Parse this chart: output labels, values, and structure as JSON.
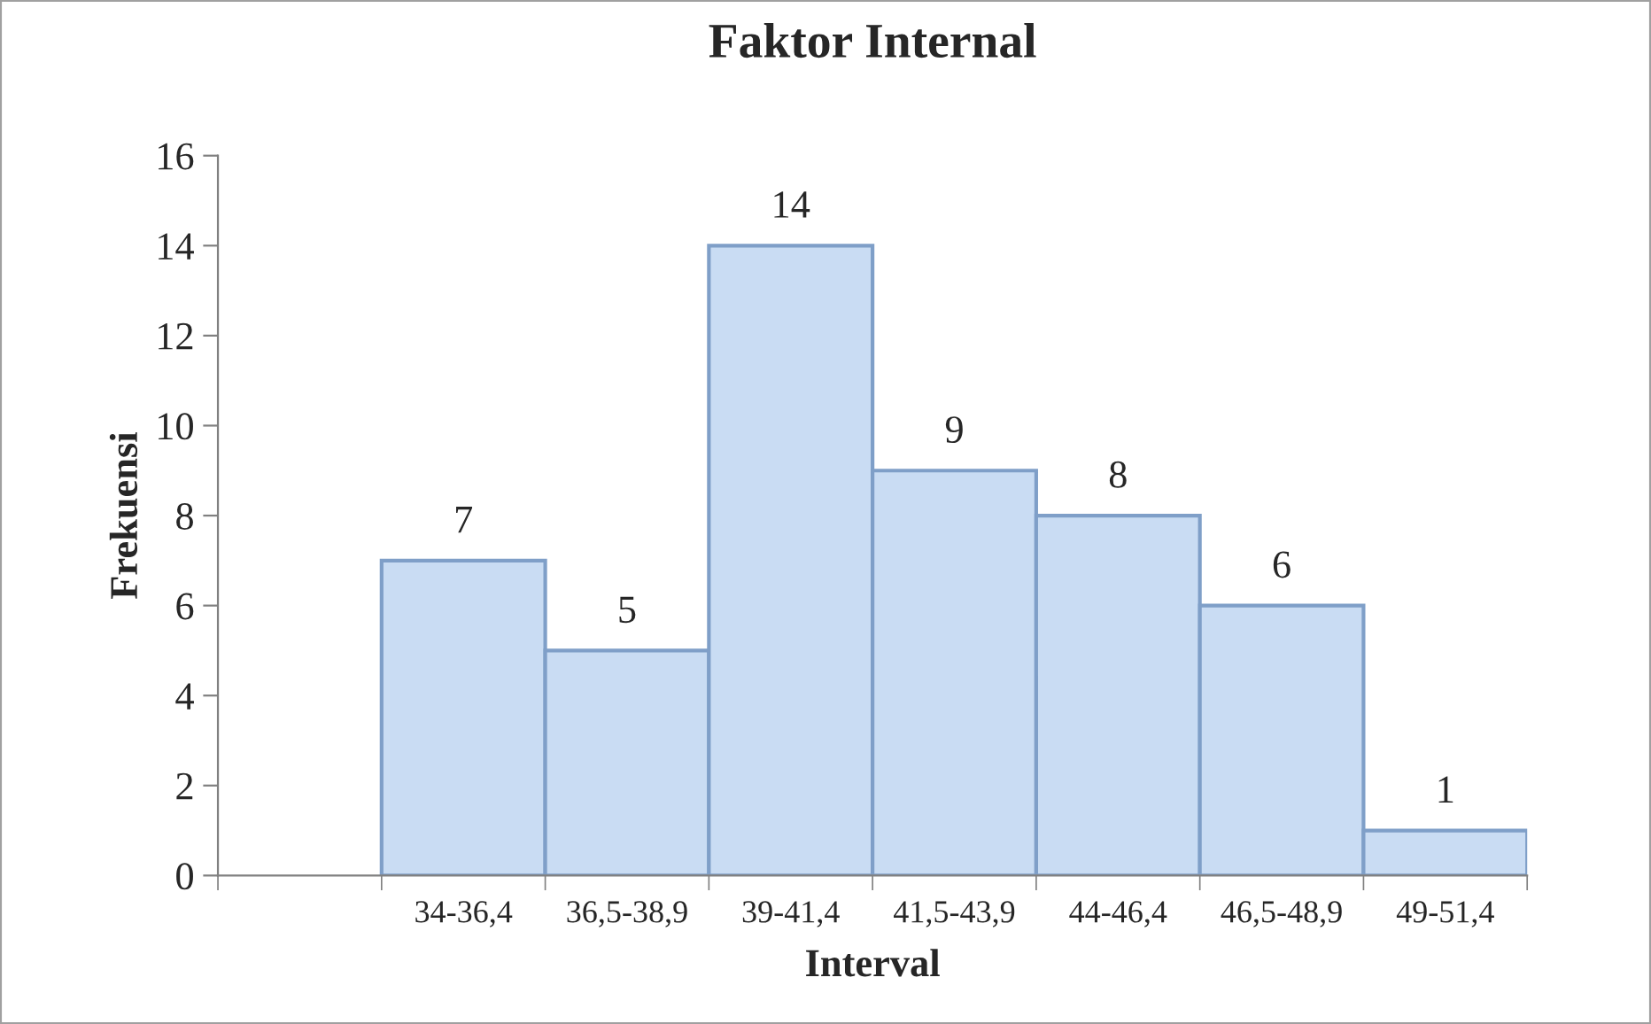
{
  "chart_data": {
    "type": "bar",
    "title": "Faktor Internal",
    "xlabel": "Interval",
    "ylabel": "Frekuensi",
    "categories": [
      null,
      "34-36,4",
      "36,5-38,9",
      "39-41,4",
      "41,5-43,9",
      "44-46,4",
      "46,5-48,9",
      "49-51,4"
    ],
    "values": [
      null,
      7,
      5,
      14,
      9,
      8,
      6,
      1
    ],
    "color": "#c9dcf3",
    "ylim": [
      0,
      16
    ],
    "yticks": [
      0,
      2,
      4,
      6,
      8,
      10,
      12,
      14,
      16
    ],
    "data_labels": true,
    "grid": false,
    "legend": false
  }
}
